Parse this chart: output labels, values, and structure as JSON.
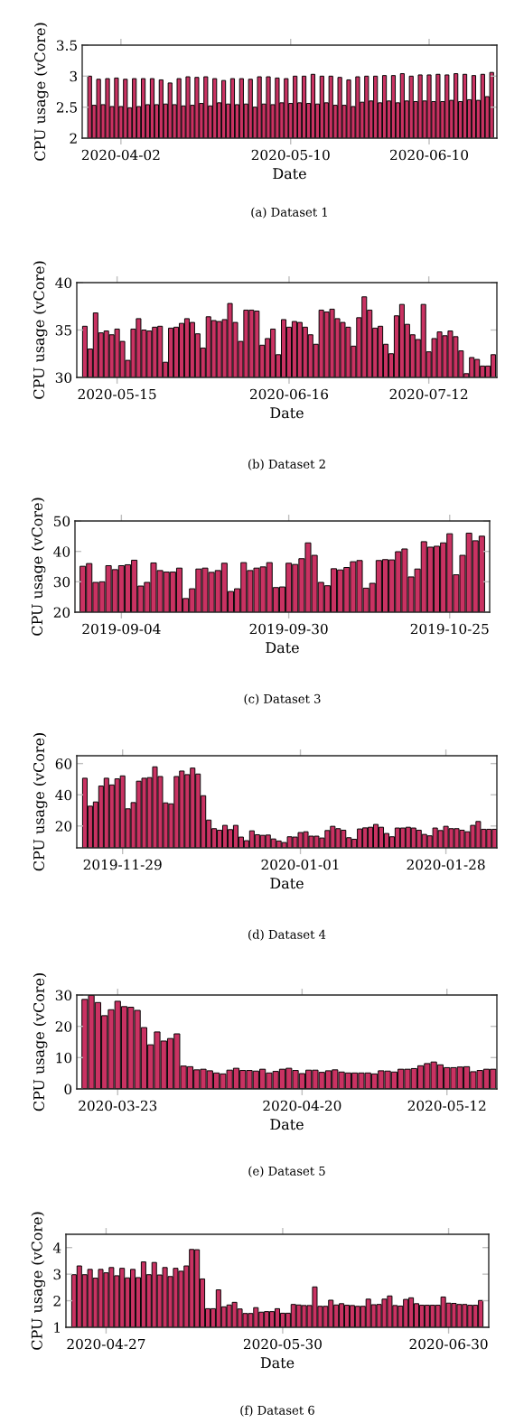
{
  "chart_data": [
    {
      "type": "bar",
      "xlabel": "Date",
      "ylabel": "CPU usage (vCore)",
      "annotations": [
        "(a) Dataset 1"
      ],
      "color": "#c93262",
      "ylim": [
        2,
        3.5
      ],
      "yticks": [
        2,
        2.5,
        3,
        3.5
      ],
      "xlim": [
        "2020-03-24T08:00",
        "2020-06-25T04:00"
      ],
      "xticks": [
        "2020-04-02",
        "2020-05-10",
        "2020-06-10"
      ],
      "x": [
        "2020-03-26",
        "2020-03-27",
        "2020-03-28",
        "2020-03-29",
        "2020-03-30",
        "2020-03-31",
        "2020-04-01",
        "2020-04-02",
        "2020-04-03",
        "2020-04-04",
        "2020-04-05",
        "2020-04-06",
        "2020-04-07",
        "2020-04-08",
        "2020-04-09",
        "2020-04-10",
        "2020-04-11",
        "2020-04-12",
        "2020-04-13",
        "2020-04-14",
        "2020-04-15",
        "2020-04-16",
        "2020-04-17",
        "2020-04-18",
        "2020-04-19",
        "2020-04-20",
        "2020-04-21",
        "2020-04-22",
        "2020-04-23",
        "2020-04-24",
        "2020-04-25",
        "2020-04-26",
        "2020-04-27",
        "2020-04-28",
        "2020-04-29",
        "2020-04-30",
        "2020-05-01",
        "2020-05-02",
        "2020-05-03",
        "2020-05-04",
        "2020-05-05",
        "2020-05-06",
        "2020-05-07",
        "2020-05-08",
        "2020-05-09",
        "2020-05-10",
        "2020-05-11",
        "2020-05-12",
        "2020-05-13",
        "2020-05-14",
        "2020-05-15",
        "2020-05-16",
        "2020-05-17",
        "2020-05-18",
        "2020-05-19",
        "2020-05-20",
        "2020-05-21",
        "2020-05-22",
        "2020-05-23",
        "2020-05-24",
        "2020-05-25",
        "2020-05-26",
        "2020-05-27",
        "2020-05-28",
        "2020-05-29",
        "2020-05-30",
        "2020-05-31",
        "2020-06-01",
        "2020-06-02",
        "2020-06-03",
        "2020-06-04",
        "2020-06-05",
        "2020-06-06",
        "2020-06-07",
        "2020-06-08",
        "2020-06-09",
        "2020-06-10",
        "2020-06-11",
        "2020-06-12",
        "2020-06-13",
        "2020-06-14",
        "2020-06-15",
        "2020-06-16",
        "2020-06-17",
        "2020-06-18",
        "2020-06-19",
        "2020-06-20",
        "2020-06-21",
        "2020-06-22",
        "2020-06-23",
        "2020-06-24"
      ],
      "values": [
        3.0,
        2.53,
        2.95,
        2.54,
        2.96,
        2.51,
        2.97,
        2.51,
        2.95,
        2.49,
        2.96,
        2.51,
        2.96,
        2.54,
        2.96,
        2.54,
        2.94,
        2.55,
        2.89,
        2.54,
        2.96,
        2.52,
        2.99,
        2.53,
        2.98,
        2.56,
        2.99,
        2.52,
        2.96,
        2.57,
        2.93,
        2.55,
        2.96,
        2.54,
        2.96,
        2.55,
        2.95,
        2.5,
        2.99,
        2.55,
        2.99,
        2.54,
        2.97,
        2.57,
        2.96,
        2.56,
        3.0,
        2.57,
        3.0,
        2.56,
        3.03,
        2.55,
        3.0,
        2.57,
        3.0,
        2.53,
        2.98,
        2.53,
        2.94,
        2.51,
        2.99,
        2.58,
        3.0,
        2.6,
        3.0,
        2.57,
        3.01,
        2.6,
        3.01,
        2.57,
        3.04,
        2.6,
        3.0,
        2.59,
        3.02,
        2.6,
        3.02,
        2.59,
        3.03,
        2.59,
        3.02,
        2.61,
        3.04,
        2.59,
        3.03,
        2.62,
        3.01,
        2.61,
        3.03,
        2.67,
        3.06
      ]
    },
    {
      "type": "bar",
      "xlabel": "Date",
      "ylabel": "CPU usage (vCore)",
      "annotations": [
        "(b) Dataset 2"
      ],
      "color": "#c93262",
      "ylim": [
        30,
        40
      ],
      "yticks": [
        30,
        35,
        40
      ],
      "xlim": [
        "2020-05-07T12:00",
        "2020-07-24T16:00"
      ],
      "xticks": [
        "2020-05-15",
        "2020-06-16",
        "2020-07-12"
      ],
      "x": [
        "2020-05-09",
        "2020-05-10",
        "2020-05-11",
        "2020-05-12",
        "2020-05-13",
        "2020-05-14",
        "2020-05-15",
        "2020-05-16",
        "2020-05-17",
        "2020-05-18",
        "2020-05-19",
        "2020-05-20",
        "2020-05-21",
        "2020-05-22",
        "2020-05-23",
        "2020-05-24",
        "2020-05-25",
        "2020-05-26",
        "2020-05-27",
        "2020-05-28",
        "2020-05-29",
        "2020-05-30",
        "2020-05-31",
        "2020-06-01",
        "2020-06-02",
        "2020-06-03",
        "2020-06-04",
        "2020-06-05",
        "2020-06-06",
        "2020-06-07",
        "2020-06-08",
        "2020-06-09",
        "2020-06-10",
        "2020-06-11",
        "2020-06-12",
        "2020-06-13",
        "2020-06-14",
        "2020-06-15",
        "2020-06-16",
        "2020-06-17",
        "2020-06-18",
        "2020-06-19",
        "2020-06-20",
        "2020-06-21",
        "2020-06-22",
        "2020-06-23",
        "2020-06-24",
        "2020-06-25",
        "2020-06-26",
        "2020-06-27",
        "2020-06-28",
        "2020-06-29",
        "2020-06-30",
        "2020-07-01",
        "2020-07-02",
        "2020-07-03",
        "2020-07-04",
        "2020-07-05",
        "2020-07-06",
        "2020-07-07",
        "2020-07-08",
        "2020-07-09",
        "2020-07-10",
        "2020-07-11",
        "2020-07-12",
        "2020-07-13",
        "2020-07-14",
        "2020-07-15",
        "2020-07-16",
        "2020-07-17",
        "2020-07-18",
        "2020-07-19",
        "2020-07-20",
        "2020-07-21",
        "2020-07-22",
        "2020-07-23",
        "2020-07-24"
      ],
      "values": [
        35.4,
        33.0,
        36.8,
        34.7,
        34.9,
        34.5,
        35.1,
        33.8,
        31.8,
        35.1,
        36.2,
        35.0,
        34.9,
        35.3,
        35.4,
        31.6,
        35.2,
        35.3,
        35.7,
        36.2,
        35.8,
        34.6,
        33.1,
        36.4,
        36.0,
        35.9,
        36.1,
        37.8,
        35.8,
        33.8,
        37.1,
        37.1,
        37.0,
        33.4,
        34.1,
        35.1,
        32.4,
        36.1,
        35.3,
        35.9,
        35.8,
        35.3,
        34.5,
        33.5,
        37.1,
        36.9,
        37.2,
        36.2,
        35.8,
        35.3,
        33.3,
        36.3,
        38.5,
        37.1,
        35.2,
        35.4,
        33.5,
        32.5,
        36.5,
        37.7,
        35.6,
        34.5,
        34.0,
        37.7,
        32.7,
        34.1,
        34.8,
        34.4,
        34.9,
        34.3,
        32.8,
        30.4,
        32.1,
        31.9,
        31.2,
        31.2,
        32.4
      ]
    },
    {
      "type": "bar",
      "xlabel": "Date",
      "ylabel": "CPU usage (vCore)",
      "annotations": [
        "(c) Dataset 3"
      ],
      "color": "#c93262",
      "ylim": [
        20,
        50
      ],
      "yticks": [
        20,
        30,
        40,
        50
      ],
      "xlim": [
        "2019-08-27T19:00",
        "2019-10-31T05:00"
      ],
      "xticks": [
        "2019-09-04",
        "2019-09-30",
        "2019-10-25"
      ],
      "x": [
        "2019-08-29",
        "2019-08-30",
        "2019-08-31",
        "2019-09-01",
        "2019-09-02",
        "2019-09-03",
        "2019-09-04",
        "2019-09-05",
        "2019-09-06",
        "2019-09-07",
        "2019-09-08",
        "2019-09-09",
        "2019-09-10",
        "2019-09-11",
        "2019-09-12",
        "2019-09-13",
        "2019-09-14",
        "2019-09-15",
        "2019-09-16",
        "2019-09-17",
        "2019-09-18",
        "2019-09-19",
        "2019-09-20",
        "2019-09-21",
        "2019-09-22",
        "2019-09-23",
        "2019-09-24",
        "2019-09-25",
        "2019-09-26",
        "2019-09-27",
        "2019-09-28",
        "2019-09-29",
        "2019-09-30",
        "2019-10-01",
        "2019-10-02",
        "2019-10-03",
        "2019-10-04",
        "2019-10-05",
        "2019-10-06",
        "2019-10-07",
        "2019-10-08",
        "2019-10-09",
        "2019-10-10",
        "2019-10-11",
        "2019-10-12",
        "2019-10-13",
        "2019-10-14",
        "2019-10-15",
        "2019-10-16",
        "2019-10-17",
        "2019-10-18",
        "2019-10-19",
        "2019-10-20",
        "2019-10-21",
        "2019-10-22",
        "2019-10-23",
        "2019-10-24",
        "2019-10-25",
        "2019-10-26",
        "2019-10-27",
        "2019-10-28",
        "2019-10-29",
        "2019-10-30"
      ],
      "values": [
        35.1,
        36.0,
        29.8,
        30.0,
        35.3,
        34.0,
        35.3,
        35.6,
        37.1,
        28.6,
        29.8,
        36.2,
        33.7,
        33.2,
        33.2,
        34.5,
        24.5,
        27.7,
        34.2,
        34.5,
        33.1,
        33.7,
        36.1,
        26.8,
        27.7,
        36.3,
        33.7,
        34.5,
        34.9,
        36.3,
        28.1,
        28.3,
        36.1,
        35.7,
        37.6,
        42.8,
        38.7,
        29.8,
        28.7,
        34.3,
        33.9,
        34.7,
        36.6,
        37.0,
        27.9,
        29.5,
        37.0,
        37.3,
        37.2,
        39.9,
        40.8,
        31.6,
        34.2,
        43.2,
        41.4,
        41.7,
        42.8,
        45.8,
        32.3,
        38.7,
        46.0,
        43.5,
        45.0
      ]
    },
    {
      "type": "bar",
      "xlabel": "Date",
      "ylabel": "CPU usage (vCore)",
      "annotations": [
        "(d) Dataset 4"
      ],
      "color": "#c93262",
      "ylim": [
        6,
        65
      ],
      "yticks": [
        20,
        40,
        60
      ],
      "xlim": [
        "2019-11-20T12:00",
        "2020-02-06T11:00"
      ],
      "xticks": [
        "2019-11-29",
        "2020-01-01",
        "2020-01-28"
      ],
      "x": [
        "2019-11-22",
        "2019-11-23",
        "2019-11-24",
        "2019-11-25",
        "2019-11-26",
        "2019-11-27",
        "2019-11-28",
        "2019-11-29",
        "2019-11-30",
        "2019-12-01",
        "2019-12-02",
        "2019-12-03",
        "2019-12-04",
        "2019-12-05",
        "2019-12-06",
        "2019-12-07",
        "2019-12-08",
        "2019-12-09",
        "2019-12-10",
        "2019-12-11",
        "2019-12-12",
        "2019-12-13",
        "2019-12-14",
        "2019-12-15",
        "2019-12-16",
        "2019-12-17",
        "2019-12-18",
        "2019-12-19",
        "2019-12-20",
        "2019-12-21",
        "2019-12-22",
        "2019-12-23",
        "2019-12-24",
        "2019-12-25",
        "2019-12-26",
        "2019-12-27",
        "2019-12-28",
        "2019-12-29",
        "2019-12-30",
        "2019-12-31",
        "2020-01-01",
        "2020-01-02",
        "2020-01-03",
        "2020-01-04",
        "2020-01-05",
        "2020-01-06",
        "2020-01-07",
        "2020-01-08",
        "2020-01-09",
        "2020-01-10",
        "2020-01-11",
        "2020-01-12",
        "2020-01-13",
        "2020-01-14",
        "2020-01-15",
        "2020-01-16",
        "2020-01-17",
        "2020-01-18",
        "2020-01-19",
        "2020-01-20",
        "2020-01-21",
        "2020-01-22",
        "2020-01-23",
        "2020-01-24",
        "2020-01-25",
        "2020-01-26",
        "2020-01-27",
        "2020-01-28",
        "2020-01-29",
        "2020-01-30",
        "2020-01-31",
        "2020-02-01",
        "2020-02-02",
        "2020-02-03",
        "2020-02-04",
        "2020-02-05",
        "2020-02-06"
      ],
      "values": [
        50.6,
        32.7,
        35.4,
        45.6,
        50.6,
        46.3,
        50.2,
        52.1,
        31.0,
        35.0,
        48.7,
        50.6,
        51.0,
        57.9,
        51.7,
        34.8,
        34.2,
        51.7,
        55.2,
        52.9,
        57.1,
        53.3,
        39.4,
        23.8,
        18.3,
        17.3,
        20.4,
        17.7,
        20.4,
        12.9,
        10.6,
        16.9,
        14.4,
        14.0,
        14.2,
        11.7,
        10.4,
        9.4,
        13.1,
        12.9,
        15.8,
        16.3,
        13.5,
        13.5,
        12.3,
        17.1,
        19.8,
        18.3,
        17.3,
        12.5,
        11.5,
        18.1,
        18.8,
        19.2,
        21.0,
        19.2,
        15.2,
        13.1,
        18.7,
        18.7,
        19.2,
        18.7,
        17.3,
        14.6,
        13.7,
        18.7,
        17.1,
        19.8,
        18.3,
        18.3,
        17.3,
        16.3,
        20.4,
        22.9,
        17.9,
        17.9,
        17.9
      ]
    },
    {
      "type": "bar",
      "xlabel": "Date",
      "ylabel": "CPU usage (vCore)",
      "annotations": [
        "(e) Dataset 5"
      ],
      "color": "#c93262",
      "ylim": [
        0,
        30
      ],
      "yticks": [
        0,
        10,
        20,
        30
      ],
      "xlim": [
        "2020-03-16T19:00",
        "2020-05-19T14:00"
      ],
      "xticks": [
        "2020-03-23",
        "2020-04-20",
        "2020-05-12"
      ],
      "x": [
        "2020-03-18",
        "2020-03-19",
        "2020-03-20",
        "2020-03-21",
        "2020-03-22",
        "2020-03-23",
        "2020-03-24",
        "2020-03-25",
        "2020-03-26",
        "2020-03-27",
        "2020-03-28",
        "2020-03-29",
        "2020-03-30",
        "2020-03-31",
        "2020-04-01",
        "2020-04-02",
        "2020-04-03",
        "2020-04-04",
        "2020-04-05",
        "2020-04-06",
        "2020-04-07",
        "2020-04-08",
        "2020-04-09",
        "2020-04-10",
        "2020-04-11",
        "2020-04-12",
        "2020-04-13",
        "2020-04-14",
        "2020-04-15",
        "2020-04-16",
        "2020-04-17",
        "2020-04-18",
        "2020-04-19",
        "2020-04-20",
        "2020-04-21",
        "2020-04-22",
        "2020-04-23",
        "2020-04-24",
        "2020-04-25",
        "2020-04-26",
        "2020-04-27",
        "2020-04-28",
        "2020-04-29",
        "2020-04-30",
        "2020-05-01",
        "2020-05-02",
        "2020-05-03",
        "2020-05-04",
        "2020-05-05",
        "2020-05-06",
        "2020-05-07",
        "2020-05-08",
        "2020-05-09",
        "2020-05-10",
        "2020-05-11",
        "2020-05-12",
        "2020-05-13",
        "2020-05-14",
        "2020-05-15",
        "2020-05-16",
        "2020-05-17",
        "2020-05-18",
        "2020-05-19"
      ],
      "values": [
        28.6,
        29.9,
        27.6,
        23.4,
        25.3,
        28.0,
        26.3,
        26.1,
        25.1,
        19.6,
        14.1,
        18.2,
        15.3,
        16.1,
        17.6,
        7.3,
        7.1,
        6.1,
        6.3,
        5.8,
        5.1,
        4.8,
        6.0,
        6.6,
        5.9,
        5.9,
        5.7,
        6.3,
        5.1,
        5.6,
        6.3,
        6.6,
        5.9,
        4.9,
        6.0,
        6.0,
        5.3,
        5.8,
        6.1,
        5.4,
        5.1,
        5.1,
        5.1,
        5.1,
        4.8,
        5.8,
        5.7,
        5.4,
        6.3,
        6.3,
        6.5,
        7.4,
        8.1,
        8.6,
        7.7,
        6.8,
        6.8,
        7.0,
        7.1,
        5.5,
        5.9,
        6.3,
        6.3
      ]
    },
    {
      "type": "bar",
      "xlabel": "Date",
      "ylabel": "CPU usage (vCore)",
      "annotations": [
        "(f) Dataset 6"
      ],
      "color": "#c93262",
      "ylim": [
        1,
        4.5
      ],
      "yticks": [
        1,
        2,
        3,
        4
      ],
      "xlim": [
        "2020-04-19T12:00",
        "2020-07-07T12:00"
      ],
      "xticks": [
        "2020-04-27",
        "2020-05-30",
        "2020-06-30"
      ],
      "x": [
        "2020-04-21",
        "2020-04-22",
        "2020-04-23",
        "2020-04-24",
        "2020-04-25",
        "2020-04-26",
        "2020-04-27",
        "2020-04-28",
        "2020-04-29",
        "2020-04-30",
        "2020-05-01",
        "2020-05-02",
        "2020-05-03",
        "2020-05-04",
        "2020-05-05",
        "2020-05-06",
        "2020-05-07",
        "2020-05-08",
        "2020-05-09",
        "2020-05-10",
        "2020-05-11",
        "2020-05-12",
        "2020-05-13",
        "2020-05-14",
        "2020-05-15",
        "2020-05-16",
        "2020-05-17",
        "2020-05-18",
        "2020-05-19",
        "2020-05-20",
        "2020-05-21",
        "2020-05-22",
        "2020-05-23",
        "2020-05-24",
        "2020-05-25",
        "2020-05-26",
        "2020-05-27",
        "2020-05-28",
        "2020-05-29",
        "2020-05-30",
        "2020-05-31",
        "2020-06-01",
        "2020-06-02",
        "2020-06-03",
        "2020-06-04",
        "2020-06-05",
        "2020-06-06",
        "2020-06-07",
        "2020-06-08",
        "2020-06-09",
        "2020-06-10",
        "2020-06-11",
        "2020-06-12",
        "2020-06-13",
        "2020-06-14",
        "2020-06-15",
        "2020-06-16",
        "2020-06-17",
        "2020-06-18",
        "2020-06-19",
        "2020-06-20",
        "2020-06-21",
        "2020-06-22",
        "2020-06-23",
        "2020-06-24",
        "2020-06-25",
        "2020-06-26",
        "2020-06-27",
        "2020-06-28",
        "2020-06-29",
        "2020-06-30",
        "2020-07-01",
        "2020-07-02",
        "2020-07-03",
        "2020-07-04",
        "2020-07-05",
        "2020-07-06"
      ],
      "values": [
        2.98,
        3.31,
        2.98,
        3.18,
        2.85,
        3.18,
        3.05,
        3.25,
        2.94,
        3.22,
        2.86,
        3.18,
        2.87,
        3.46,
        2.98,
        3.44,
        2.97,
        3.25,
        2.91,
        3.22,
        3.11,
        3.31,
        3.93,
        3.92,
        2.82,
        1.7,
        1.7,
        2.41,
        1.77,
        1.84,
        1.94,
        1.69,
        1.52,
        1.52,
        1.74,
        1.57,
        1.59,
        1.59,
        1.7,
        1.53,
        1.53,
        1.86,
        1.84,
        1.82,
        1.82,
        2.52,
        1.79,
        1.79,
        2.02,
        1.84,
        1.89,
        1.83,
        1.82,
        1.79,
        1.79,
        2.06,
        1.85,
        1.86,
        2.06,
        2.18,
        1.82,
        1.8,
        2.05,
        2.11,
        1.89,
        1.83,
        1.83,
        1.83,
        1.83,
        2.14,
        1.91,
        1.9,
        1.86,
        1.86,
        1.83,
        1.83,
        2.01
      ]
    }
  ]
}
